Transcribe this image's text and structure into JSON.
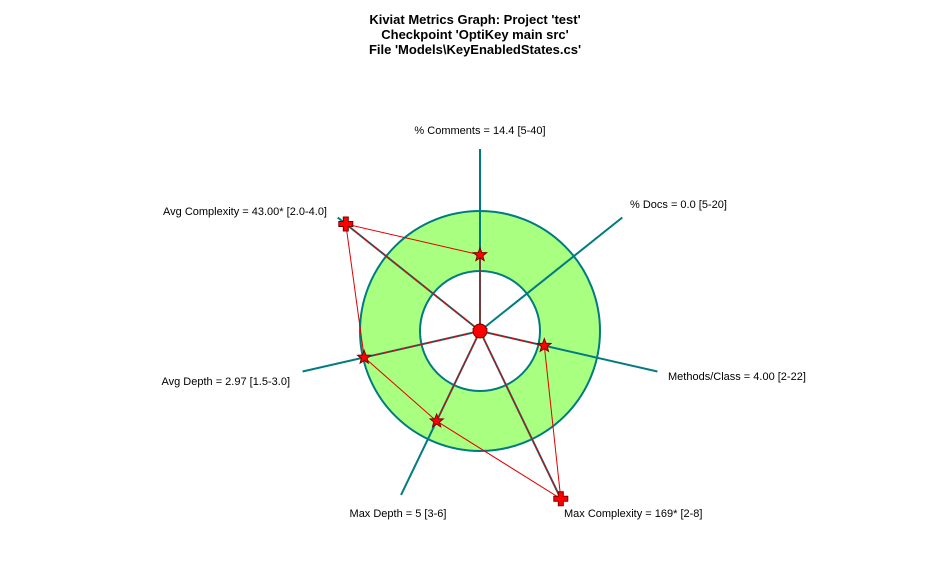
{
  "title_lines": [
    "Kiviat Metrics Graph: Project 'test'",
    "Checkpoint 'OptiKey main src'",
    "File 'Models\\KeyEnabledStates.cs'"
  ],
  "chart_data": {
    "type": "radar",
    "axes": [
      {
        "name": "% Comments",
        "label": "% Comments = 14.4 [5-40]",
        "value": 14.4,
        "range": [
          5,
          40
        ],
        "out_of_range": false
      },
      {
        "name": "% Docs",
        "label": "% Docs = 0.0 [5-20]",
        "value": 0.0,
        "range": [
          5,
          20
        ],
        "out_of_range": false
      },
      {
        "name": "Methods/Class",
        "label": "Methods/Class = 4.00 [2-22]",
        "value": 4.0,
        "range": [
          2,
          22
        ],
        "out_of_range": false
      },
      {
        "name": "Max Complexity",
        "label": "Max Complexity = 169* [2-8]",
        "value": 169,
        "range": [
          2,
          8
        ],
        "out_of_range": true
      },
      {
        "name": "Max Depth",
        "label": "Max Depth = 5 [3-6]",
        "value": 5,
        "range": [
          3,
          6
        ],
        "out_of_range": false
      },
      {
        "name": "Avg Depth",
        "label": "Avg Depth = 2.97 [1.5-3.0]",
        "value": 2.97,
        "range": [
          1.5,
          3.0
        ],
        "out_of_range": false
      },
      {
        "name": "Avg Complexity",
        "label": "Avg Complexity = 43.00* [2.0-4.0]",
        "value": 43.0,
        "range": [
          2.0,
          4.0
        ],
        "out_of_range": true
      }
    ],
    "colors": {
      "normal_band": "#a8ff80",
      "band_stroke": "#007b80",
      "axis": "#007b80",
      "polygon": "#e00000",
      "marker": "#ff0000"
    }
  }
}
